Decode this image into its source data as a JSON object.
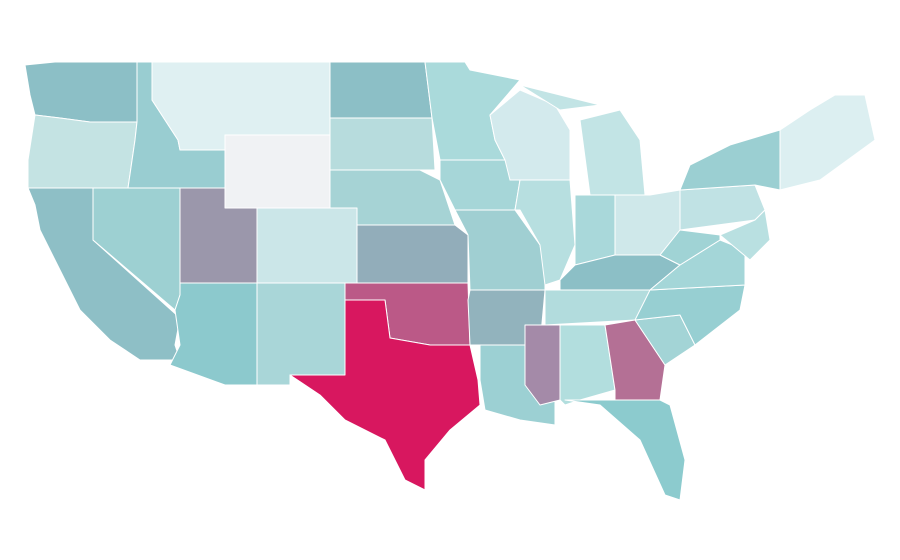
{
  "map": {
    "regions": [
      {
        "color": "#8cbfc6"
      },
      {
        "color": "#c4e3e3"
      },
      {
        "color": "#8ebfc6"
      },
      {
        "color": "#9dd0d2"
      },
      {
        "color": "#99cdd1"
      },
      {
        "color": "#dff0f2"
      },
      {
        "color": "#f0f2f4"
      },
      {
        "color": "#9b97ab"
      },
      {
        "color": "#cbe6e8"
      },
      {
        "color": "#8cc9cd"
      },
      {
        "color": "#a9d6d8"
      },
      {
        "color": "#8cbfc6"
      },
      {
        "color": "#b7dcdd"
      },
      {
        "color": "#a6d3d5"
      },
      {
        "color": "#92adba"
      },
      {
        "color": "#bb5987"
      },
      {
        "color": "#d8175f"
      },
      {
        "color": "#aadadb"
      },
      {
        "color": "#a6d6d8"
      },
      {
        "color": "#a0cfd2"
      },
      {
        "color": "#92b3bd"
      },
      {
        "color": "#9cd0d3"
      },
      {
        "color": "#d3eaed"
      },
      {
        "color": "#b7dfe0"
      },
      {
        "color": "#c2e4e5"
      },
      {
        "color": "#a9d8da"
      },
      {
        "color": "#cfe8ea"
      },
      {
        "color": "#8cbfc6"
      },
      {
        "color": "#b2dcdd"
      },
      {
        "color": "#a48aa8"
      },
      {
        "color": "#b2dede"
      },
      {
        "color": "#b47095"
      },
      {
        "color": "#8ccbce"
      },
      {
        "color": "#a3d4d6"
      },
      {
        "color": "#97cfd2"
      },
      {
        "color": "#a4d6d8"
      },
      {
        "color": "#a0d3d5"
      },
      {
        "color": "#c0e2e4"
      },
      {
        "color": "#9bcfd2"
      },
      {
        "color": "#b9e0e1"
      },
      {
        "color": "#dceff1"
      },
      {
        "color": "#c2e4e5"
      }
    ]
  }
}
